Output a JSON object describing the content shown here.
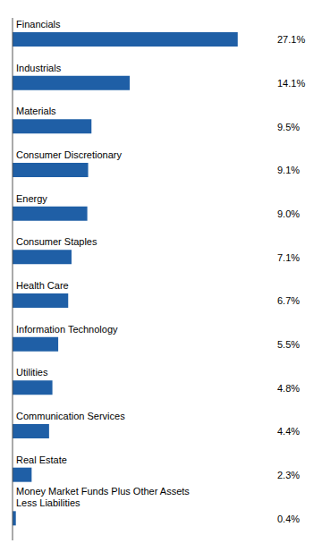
{
  "chart_data": {
    "type": "bar",
    "orientation": "horizontal",
    "categories": [
      "Financials",
      "Industrials",
      "Materials",
      "Consumer Discretionary",
      "Energy",
      "Consumer Staples",
      "Health Care",
      "Information Technology",
      "Utilities",
      "Communication Services",
      "Real Estate",
      "Money Market Funds Plus Other Assets\nLess Liabilities"
    ],
    "values": [
      27.1,
      14.1,
      9.5,
      9.1,
      9.0,
      7.1,
      6.7,
      5.5,
      4.8,
      4.4,
      2.3,
      0.4
    ],
    "value_labels": [
      "27.1%",
      "14.1%",
      "9.5%",
      "9.1%",
      "9.0%",
      "7.1%",
      "6.7%",
      "5.5%",
      "4.8%",
      "4.4%",
      "2.3%",
      "0.4%"
    ],
    "color": "#1F5FA6",
    "xlim": [
      0,
      31
    ],
    "data_labels": true,
    "tick_labels": false,
    "grid": false
  }
}
